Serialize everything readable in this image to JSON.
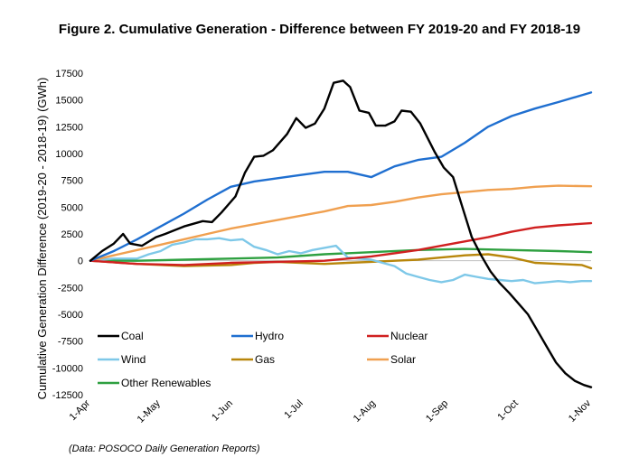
{
  "title": "Figure 2. Cumulative Generation - Difference between FY 2019-20 and FY 2018-19",
  "source": "(Data: POSOCO Daily Generation Reports)",
  "chart_data": {
    "type": "line",
    "ylabel": "Cumulative Generation Difference (2019-20 - 2018-19)  (GWh)",
    "xlabel": "",
    "ylim": [
      -12500,
      17500
    ],
    "yticks": [
      17500,
      15000,
      12500,
      10000,
      7500,
      5000,
      2500,
      0,
      -2500,
      -5000,
      -7500,
      -10000,
      -12500
    ],
    "x_ticks": [
      "1-Apr",
      "1-May",
      "1-Jun",
      "1-Jul",
      "1-Aug",
      "1-Sep",
      "1-Oct",
      "1-Nov"
    ],
    "x_tick_days": [
      0,
      30,
      61,
      91,
      122,
      153,
      183,
      214
    ],
    "x_unit": "days since 1-Apr",
    "legend": "bottom-left",
    "series": [
      {
        "name": "Coal",
        "color": "#000000",
        "x": [
          0,
          5,
          10,
          14,
          17,
          22,
          28,
          32,
          40,
          48,
          52,
          56,
          62,
          66,
          70,
          74,
          78,
          84,
          88,
          92,
          96,
          100,
          104,
          108,
          111,
          115,
          119,
          122,
          126,
          130,
          133,
          137,
          141,
          144,
          147,
          151,
          155,
          159,
          163,
          167,
          171,
          175,
          179,
          183,
          187,
          191,
          195,
          199,
          203,
          207,
          211,
          214
        ],
        "y": [
          0,
          900,
          1600,
          2500,
          1600,
          1400,
          2200,
          2500,
          3200,
          3700,
          3600,
          4500,
          6000,
          8200,
          9700,
          9800,
          10300,
          11800,
          13300,
          12400,
          12800,
          14200,
          16600,
          16800,
          16200,
          14000,
          13800,
          12600,
          12600,
          13000,
          14000,
          13900,
          12800,
          11500,
          10200,
          8700,
          7800,
          5000,
          2200,
          500,
          -1000,
          -2100,
          -3000,
          -4000,
          -5000,
          -6500,
          -8000,
          -9500,
          -10500,
          -11200,
          -11600,
          -11800
        ]
      },
      {
        "name": "Hydro",
        "color": "#1F6FD0",
        "x": [
          0,
          10,
          20,
          30,
          40,
          50,
          60,
          70,
          80,
          90,
          100,
          110,
          120,
          130,
          140,
          150,
          160,
          170,
          180,
          190,
          200,
          214
        ],
        "y": [
          0,
          900,
          2000,
          3200,
          4400,
          5700,
          6900,
          7400,
          7700,
          8000,
          8300,
          8300,
          7800,
          8800,
          9400,
          9700,
          11000,
          12500,
          13500,
          14200,
          14800,
          15700
        ]
      },
      {
        "name": "Nuclear",
        "color": "#D02020",
        "x": [
          0,
          20,
          40,
          60,
          80,
          100,
          110,
          120,
          130,
          140,
          150,
          160,
          170,
          180,
          190,
          200,
          214
        ],
        "y": [
          0,
          -300,
          -400,
          -200,
          -100,
          0,
          200,
          400,
          700,
          1000,
          1400,
          1800,
          2200,
          2700,
          3100,
          3300,
          3500
        ]
      },
      {
        "name": "Wind",
        "color": "#7EC8E8",
        "x": [
          0,
          10,
          20,
          25,
          30,
          35,
          40,
          45,
          50,
          55,
          60,
          65,
          70,
          75,
          80,
          85,
          90,
          95,
          100,
          105,
          110,
          120,
          130,
          135,
          140,
          145,
          150,
          155,
          160,
          165,
          170,
          175,
          180,
          185,
          190,
          195,
          200,
          205,
          210,
          214
        ],
        "y": [
          0,
          200,
          200,
          600,
          900,
          1500,
          1700,
          2000,
          2000,
          2100,
          1900,
          2000,
          1300,
          1000,
          600,
          900,
          700,
          1000,
          1200,
          1400,
          300,
          100,
          -500,
          -1200,
          -1500,
          -1800,
          -2000,
          -1800,
          -1300,
          -1500,
          -1700,
          -1800,
          -1900,
          -1800,
          -2100,
          -2000,
          -1900,
          -2000,
          -1900,
          -1900
        ]
      },
      {
        "name": "Gas",
        "color": "#B8860B",
        "x": [
          0,
          20,
          40,
          60,
          70,
          80,
          90,
          100,
          110,
          120,
          130,
          140,
          150,
          160,
          170,
          180,
          190,
          200,
          210,
          214
        ],
        "y": [
          0,
          -300,
          -500,
          -400,
          -200,
          -100,
          -200,
          -300,
          -200,
          -100,
          0,
          100,
          300,
          500,
          600,
          300,
          -200,
          -300,
          -400,
          -700
        ]
      },
      {
        "name": "Solar",
        "color": "#F0A050",
        "x": [
          0,
          10,
          20,
          30,
          40,
          50,
          60,
          70,
          80,
          90,
          100,
          110,
          120,
          130,
          140,
          150,
          160,
          170,
          180,
          190,
          200,
          214
        ],
        "y": [
          0,
          500,
          1000,
          1500,
          2000,
          2500,
          3000,
          3400,
          3800,
          4200,
          4600,
          5100,
          5200,
          5500,
          5900,
          6200,
          6400,
          6600,
          6700,
          6900,
          7000,
          6950
        ]
      },
      {
        "name": "Other Renewables",
        "color": "#2EA040",
        "x": [
          0,
          20,
          40,
          60,
          80,
          100,
          120,
          140,
          160,
          180,
          200,
          214
        ],
        "y": [
          0,
          0,
          100,
          200,
          300,
          600,
          800,
          1000,
          1100,
          1000,
          900,
          800
        ]
      }
    ]
  }
}
